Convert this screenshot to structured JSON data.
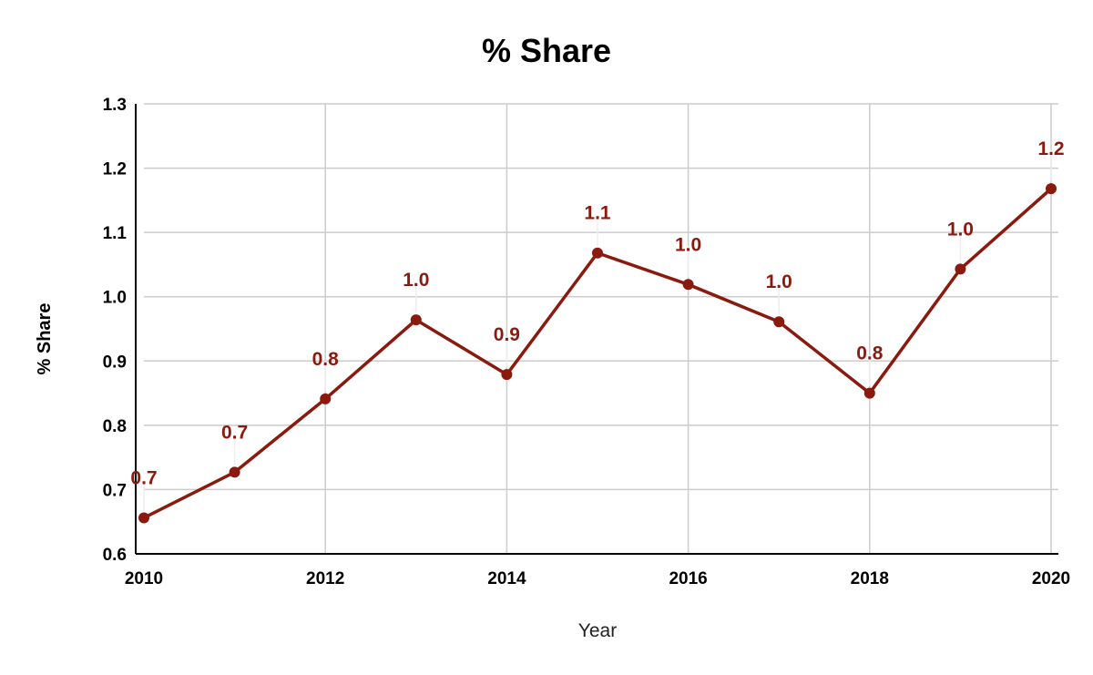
{
  "chart_data": {
    "type": "line",
    "title": "% Share",
    "xlabel": "Year",
    "ylabel": "% Share",
    "x": [
      2010,
      2011,
      2012,
      2013,
      2014,
      2015,
      2016,
      2017,
      2018,
      2019,
      2020
    ],
    "series": [
      {
        "values": [
          0.656,
          0.727,
          0.841,
          0.964,
          0.879,
          1.068,
          1.019,
          0.961,
          0.85,
          1.043,
          1.168
        ],
        "data_labels": [
          "0.7",
          "0.7",
          "0.8",
          "1.0",
          "0.9",
          "1.1",
          "1.0",
          "1.0",
          "0.8",
          "1.0",
          "1.2"
        ],
        "color": "#8b1a0e"
      }
    ],
    "xticks": [
      "2010",
      "2012",
      "2014",
      "2016",
      "2018",
      "2020"
    ],
    "xlim": [
      2010,
      2020
    ],
    "yticks": [
      "0.6",
      "0.7",
      "0.8",
      "0.9",
      "1.0",
      "1.1",
      "1.2",
      "1.3"
    ],
    "ylim": [
      0.6,
      1.3
    ],
    "grid": true,
    "legend": "none"
  },
  "colors": {
    "grid": "#cccccc",
    "axis": "#000000",
    "series": "#8b1a0e"
  }
}
